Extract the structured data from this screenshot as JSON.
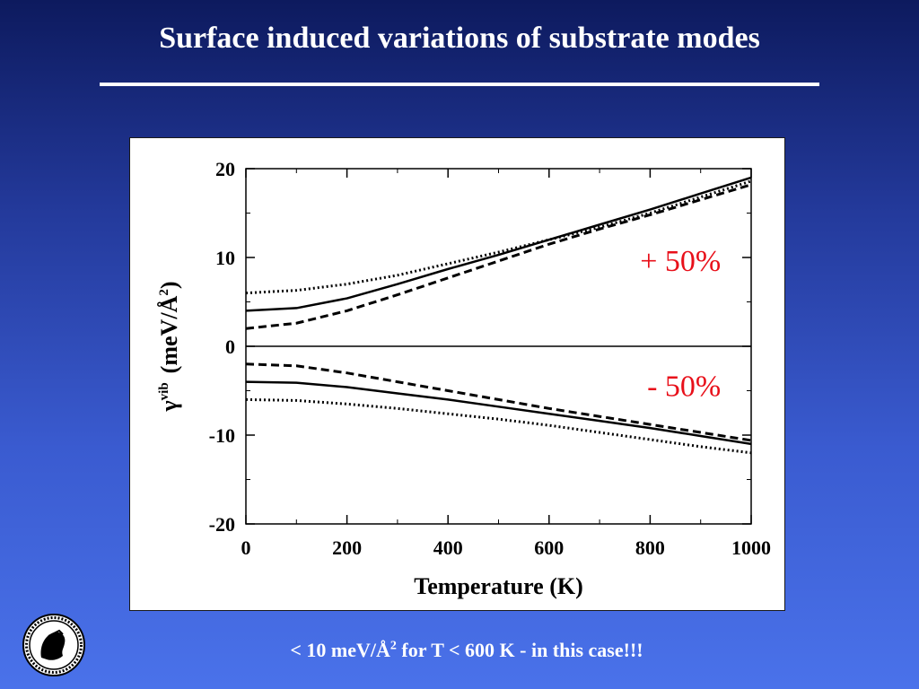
{
  "slide": {
    "title": "Surface induced variations of substrate modes",
    "footnote_main": "< 10 meV/Å",
    "footnote_sup": "2",
    "footnote_rest": " for T < 600 K  -  in this case!!!"
  },
  "chart_data": {
    "type": "line",
    "xlabel": "Temperature (K)",
    "ylabel_symbol": "γ",
    "ylabel_sup": "vib",
    "ylabel_unit": "(meV/Å",
    "ylabel_unit_sup": "2",
    "ylabel_close": ")",
    "xlim": [
      0,
      1000
    ],
    "ylim": [
      -20,
      20
    ],
    "xticks": [
      0,
      200,
      400,
      600,
      800,
      1000
    ],
    "yticks": [
      20,
      10,
      0,
      -10,
      -20
    ],
    "zero_line": true,
    "annotations": [
      {
        "text": "+ 50%",
        "x": 940,
        "y": 8.5
      },
      {
        "text": "- 50%",
        "x": 940,
        "y": -5.6
      }
    ],
    "series": [
      {
        "style": "dotted",
        "x": [
          0,
          100,
          200,
          300,
          400,
          500,
          600,
          700,
          800,
          900,
          1000
        ],
        "y": [
          6.0,
          6.3,
          7.0,
          8.0,
          9.3,
          10.6,
          12.0,
          13.4,
          15.0,
          16.8,
          18.6
        ]
      },
      {
        "style": "solid",
        "x": [
          0,
          100,
          200,
          300,
          400,
          500,
          600,
          700,
          800,
          900,
          1000
        ],
        "y": [
          4.0,
          4.3,
          5.4,
          7.0,
          8.7,
          10.3,
          12.0,
          13.7,
          15.4,
          17.2,
          19.0
        ]
      },
      {
        "style": "dashed",
        "x": [
          0,
          100,
          200,
          300,
          400,
          500,
          600,
          700,
          800,
          900,
          1000
        ],
        "y": [
          2.0,
          2.6,
          4.0,
          5.8,
          7.7,
          9.6,
          11.5,
          13.2,
          14.8,
          16.5,
          18.2
        ]
      },
      {
        "style": "dashed",
        "x": [
          0,
          100,
          200,
          300,
          400,
          500,
          600,
          700,
          800,
          900,
          1000
        ],
        "y": [
          -2.0,
          -2.2,
          -3.0,
          -4.0,
          -5.0,
          -6.0,
          -7.0,
          -7.9,
          -8.8,
          -9.7,
          -10.6
        ]
      },
      {
        "style": "solid",
        "x": [
          0,
          100,
          200,
          300,
          400,
          500,
          600,
          700,
          800,
          900,
          1000
        ],
        "y": [
          -4.0,
          -4.1,
          -4.6,
          -5.3,
          -6.0,
          -6.8,
          -7.6,
          -8.4,
          -9.2,
          -10.1,
          -11.0
        ]
      },
      {
        "style": "dotted",
        "x": [
          0,
          100,
          200,
          300,
          400,
          500,
          600,
          700,
          800,
          900,
          1000
        ],
        "y": [
          -6.0,
          -6.1,
          -6.5,
          -7.0,
          -7.6,
          -8.2,
          -8.9,
          -9.7,
          -10.5,
          -11.3,
          -12.0
        ]
      }
    ]
  }
}
